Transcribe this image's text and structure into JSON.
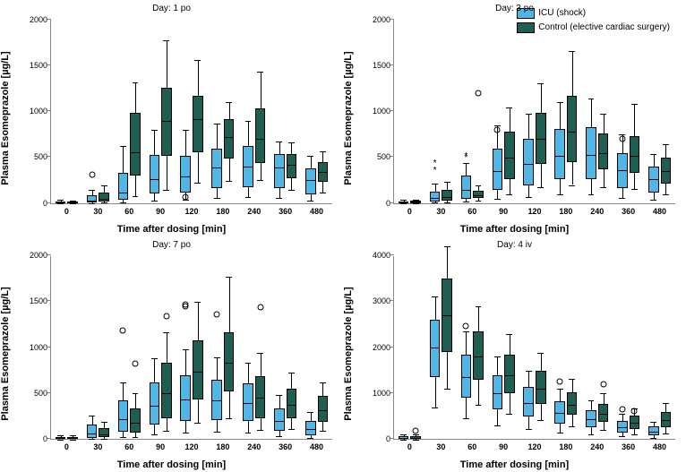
{
  "figure_width": 766,
  "figure_height": 527,
  "legend": {
    "series": [
      {
        "label": "ICU (shock)",
        "color": "#4fb6e6"
      },
      {
        "label": "Control (elective cardiac surgery)",
        "color": "#1f5f53"
      }
    ]
  },
  "global": {
    "ylabel": "Plasma Esomeprazole [µg/L]",
    "xlabel": "Time after dosing [min]",
    "x_categories": [
      "0",
      "30",
      "60",
      "90",
      "120",
      "180",
      "240",
      "360",
      "480"
    ],
    "box_rel_width": 0.33,
    "series_colors": {
      "icu": "#4fb6e6",
      "control": "#1f5f53"
    }
  },
  "panels": [
    {
      "id": "day1",
      "title": "Day: 1 po",
      "ylim": [
        0,
        2000
      ],
      "ytick_step": 500,
      "data": {
        "0": {
          "icu": {
            "q1": 5,
            "med": 10,
            "q3": 20,
            "lo": 0,
            "hi": 35
          },
          "control": {
            "q1": 5,
            "med": 10,
            "q3": 20,
            "lo": 0,
            "hi": 30
          }
        },
        "30": {
          "icu": {
            "q1": 10,
            "med": 30,
            "q3": 90,
            "lo": 0,
            "hi": 150,
            "out": [
              310
            ]
          },
          "control": {
            "q1": 20,
            "med": 50,
            "q3": 120,
            "lo": 5,
            "hi": 200
          }
        },
        "60": {
          "icu": {
            "q1": 40,
            "med": 120,
            "q3": 330,
            "lo": 10,
            "hi": 620
          },
          "control": {
            "q1": 300,
            "med": 560,
            "q3": 990,
            "lo": 80,
            "hi": 1320
          }
        },
        "90": {
          "icu": {
            "q1": 110,
            "med": 260,
            "q3": 530,
            "lo": 30,
            "hi": 800
          },
          "control": {
            "q1": 520,
            "med": 900,
            "q3": 1260,
            "lo": 150,
            "hi": 1780
          }
        },
        "120": {
          "icu": {
            "q1": 120,
            "med": 290,
            "q3": 520,
            "lo": 40,
            "hi": 800,
            "out": [
              60
            ]
          },
          "control": {
            "q1": 560,
            "med": 920,
            "q3": 1170,
            "lo": 220,
            "hi": 1560
          }
        },
        "180": {
          "icu": {
            "q1": 170,
            "med": 390,
            "q3": 600,
            "lo": 60,
            "hi": 870
          },
          "control": {
            "q1": 490,
            "med": 720,
            "q3": 920,
            "lo": 240,
            "hi": 1100
          }
        },
        "240": {
          "icu": {
            "q1": 180,
            "med": 400,
            "q3": 620,
            "lo": 70,
            "hi": 900
          },
          "control": {
            "q1": 440,
            "med": 700,
            "q3": 1030,
            "lo": 250,
            "hi": 1430
          }
        },
        "360": {
          "icu": {
            "q1": 170,
            "med": 390,
            "q3": 540,
            "lo": 60,
            "hi": 670
          },
          "control": {
            "q1": 270,
            "med": 420,
            "q3": 540,
            "lo": 150,
            "hi": 660
          }
        },
        "480": {
          "icu": {
            "q1": 100,
            "med": 250,
            "q3": 380,
            "lo": 30,
            "hi": 520
          },
          "control": {
            "q1": 230,
            "med": 340,
            "q3": 450,
            "lo": 120,
            "hi": 570
          }
        }
      }
    },
    {
      "id": "day3",
      "title": "Day: 3 po",
      "ylim": [
        0,
        2000
      ],
      "ytick_step": 500,
      "data": {
        "0": {
          "icu": {
            "q1": 5,
            "med": 10,
            "q3": 20,
            "lo": 0,
            "hi": 35
          },
          "control": {
            "q1": 5,
            "med": 10,
            "q3": 25,
            "lo": 0,
            "hi": 40
          }
        },
        "30": {
          "icu": {
            "q1": 20,
            "med": 60,
            "q3": 130,
            "lo": 5,
            "hi": 210,
            "star": [
              350,
              420
            ]
          },
          "control": {
            "q1": 30,
            "med": 70,
            "q3": 150,
            "lo": 10,
            "hi": 230
          }
        },
        "60": {
          "icu": {
            "q1": 50,
            "med": 150,
            "q3": 300,
            "lo": 15,
            "hi": 440,
            "star": [
              480,
              500
            ]
          },
          "control": {
            "q1": 60,
            "med": 90,
            "q3": 140,
            "lo": 30,
            "hi": 200,
            "out": [
              1200
            ]
          }
        },
        "90": {
          "icu": {
            "q1": 150,
            "med": 350,
            "q3": 600,
            "lo": 50,
            "hi": 850,
            "out": [
              800
            ]
          },
          "control": {
            "q1": 260,
            "med": 500,
            "q3": 780,
            "lo": 100,
            "hi": 1040
          }
        },
        "120": {
          "icu": {
            "q1": 200,
            "med": 430,
            "q3": 700,
            "lo": 70,
            "hi": 980
          },
          "control": {
            "q1": 430,
            "med": 700,
            "q3": 990,
            "lo": 180,
            "hi": 1310
          }
        },
        "180": {
          "icu": {
            "q1": 260,
            "med": 520,
            "q3": 810,
            "lo": 100,
            "hi": 1100
          },
          "control": {
            "q1": 450,
            "med": 780,
            "q3": 1170,
            "lo": 200,
            "hi": 1660
          }
        },
        "240": {
          "icu": {
            "q1": 260,
            "med": 530,
            "q3": 830,
            "lo": 100,
            "hi": 1140
          },
          "control": {
            "q1": 370,
            "med": 550,
            "q3": 760,
            "lo": 180,
            "hi": 980
          }
        },
        "360": {
          "icu": {
            "q1": 170,
            "med": 360,
            "q3": 550,
            "lo": 60,
            "hi": 750,
            "out": [
              700
            ]
          },
          "control": {
            "q1": 330,
            "med": 520,
            "q3": 730,
            "lo": 160,
            "hi": 1080
          }
        },
        "480": {
          "icu": {
            "q1": 120,
            "med": 260,
            "q3": 400,
            "lo": 40,
            "hi": 540
          },
          "control": {
            "q1": 210,
            "med": 350,
            "q3": 500,
            "lo": 100,
            "hi": 640
          }
        }
      }
    },
    {
      "id": "day7",
      "title": "Day: 7 po",
      "ylim": [
        0,
        2000
      ],
      "ytick_step": 500,
      "data": {
        "0": {
          "icu": {
            "q1": 5,
            "med": 12,
            "q3": 25,
            "lo": 0,
            "hi": 40
          },
          "control": {
            "q1": 5,
            "med": 12,
            "q3": 25,
            "lo": 0,
            "hi": 40
          }
        },
        "30": {
          "icu": {
            "q1": 15,
            "med": 60,
            "q3": 160,
            "lo": 5,
            "hi": 260
          },
          "control": {
            "q1": 20,
            "med": 50,
            "q3": 120,
            "lo": 5,
            "hi": 190
          }
        },
        "60": {
          "icu": {
            "q1": 80,
            "med": 220,
            "q3": 420,
            "lo": 20,
            "hi": 620,
            "out": [
              1180
            ]
          },
          "control": {
            "q1": 70,
            "med": 180,
            "q3": 340,
            "lo": 20,
            "hi": 500,
            "out": [
              820
            ]
          }
        },
        "90": {
          "icu": {
            "q1": 160,
            "med": 370,
            "q3": 620,
            "lo": 50,
            "hi": 880
          },
          "control": {
            "q1": 230,
            "med": 500,
            "q3": 830,
            "lo": 90,
            "hi": 1170,
            "out": [
              1340
            ]
          }
        },
        "120": {
          "icu": {
            "q1": 200,
            "med": 430,
            "q3": 700,
            "lo": 70,
            "hi": 980,
            "out": [
              1440,
              1460
            ]
          },
          "control": {
            "q1": 430,
            "med": 740,
            "q3": 1080,
            "lo": 180,
            "hi": 1500
          }
        },
        "180": {
          "icu": {
            "q1": 210,
            "med": 420,
            "q3": 650,
            "lo": 80,
            "hi": 890,
            "out": [
              1360
            ]
          },
          "control": {
            "q1": 520,
            "med": 830,
            "q3": 1170,
            "lo": 230,
            "hi": 1770
          }
        },
        "240": {
          "icu": {
            "q1": 200,
            "med": 400,
            "q3": 610,
            "lo": 70,
            "hi": 830
          },
          "control": {
            "q1": 230,
            "med": 450,
            "q3": 690,
            "lo": 100,
            "hi": 940,
            "out": [
              1430
            ]
          }
        },
        "360": {
          "icu": {
            "q1": 90,
            "med": 200,
            "q3": 340,
            "lo": 30,
            "hi": 480
          },
          "control": {
            "q1": 230,
            "med": 380,
            "q3": 550,
            "lo": 110,
            "hi": 730
          }
        },
        "480": {
          "icu": {
            "q1": 40,
            "med": 110,
            "q3": 200,
            "lo": 10,
            "hi": 300
          },
          "control": {
            "q1": 190,
            "med": 320,
            "q3": 470,
            "lo": 90,
            "hi": 620
          }
        }
      }
    },
    {
      "id": "day4iv",
      "title": "Day: 4 iv",
      "ylim": [
        0,
        4000
      ],
      "ytick_step": 1000,
      "data": {
        "0": {
          "icu": {
            "q1": 10,
            "med": 30,
            "q3": 60,
            "lo": 0,
            "hi": 100
          },
          "control": {
            "q1": 10,
            "med": 30,
            "q3": 60,
            "lo": 0,
            "hi": 100,
            "out": [
              180
            ]
          }
        },
        "30": {
          "icu": {
            "q1": 1350,
            "med": 2000,
            "q3": 2600,
            "lo": 700,
            "hi": 3120
          },
          "control": {
            "q1": 1900,
            "med": 2700,
            "q3": 3500,
            "lo": 1100,
            "hi": 4200
          }
        },
        "60": {
          "icu": {
            "q1": 900,
            "med": 1350,
            "q3": 1850,
            "lo": 450,
            "hi": 2350,
            "out": [
              2450
            ]
          },
          "control": {
            "q1": 1300,
            "med": 1800,
            "q3": 2350,
            "lo": 750,
            "hi": 2900
          }
        },
        "90": {
          "icu": {
            "q1": 650,
            "med": 1000,
            "q3": 1400,
            "lo": 300,
            "hi": 1800
          },
          "control": {
            "q1": 1000,
            "med": 1400,
            "q3": 1850,
            "lo": 550,
            "hi": 2300
          }
        },
        "120": {
          "icu": {
            "q1": 500,
            "med": 800,
            "q3": 1150,
            "lo": 230,
            "hi": 1500
          },
          "control": {
            "q1": 780,
            "med": 1100,
            "q3": 1500,
            "lo": 420,
            "hi": 1880
          }
        },
        "180": {
          "icu": {
            "q1": 350,
            "med": 570,
            "q3": 830,
            "lo": 150,
            "hi": 1100,
            "out": [
              1250
            ]
          },
          "control": {
            "q1": 530,
            "med": 760,
            "q3": 1030,
            "lo": 280,
            "hi": 1320
          }
        },
        "240": {
          "icu": {
            "q1": 260,
            "med": 430,
            "q3": 640,
            "lo": 110,
            "hi": 850
          },
          "control": {
            "q1": 380,
            "med": 560,
            "q3": 770,
            "lo": 200,
            "hi": 1000,
            "out": [
              1200
            ]
          }
        },
        "360": {
          "icu": {
            "q1": 150,
            "med": 260,
            "q3": 400,
            "lo": 60,
            "hi": 550,
            "out": [
              650
            ]
          },
          "control": {
            "q1": 230,
            "med": 360,
            "q3": 510,
            "lo": 110,
            "hi": 670,
            "out": [
              610
            ]
          }
        },
        "480": {
          "icu": {
            "q1": 90,
            "med": 170,
            "q3": 280,
            "lo": 30,
            "hi": 390
          },
          "control": {
            "q1": 260,
            "med": 420,
            "q3": 600,
            "lo": 130,
            "hi": 800
          }
        }
      }
    }
  ]
}
